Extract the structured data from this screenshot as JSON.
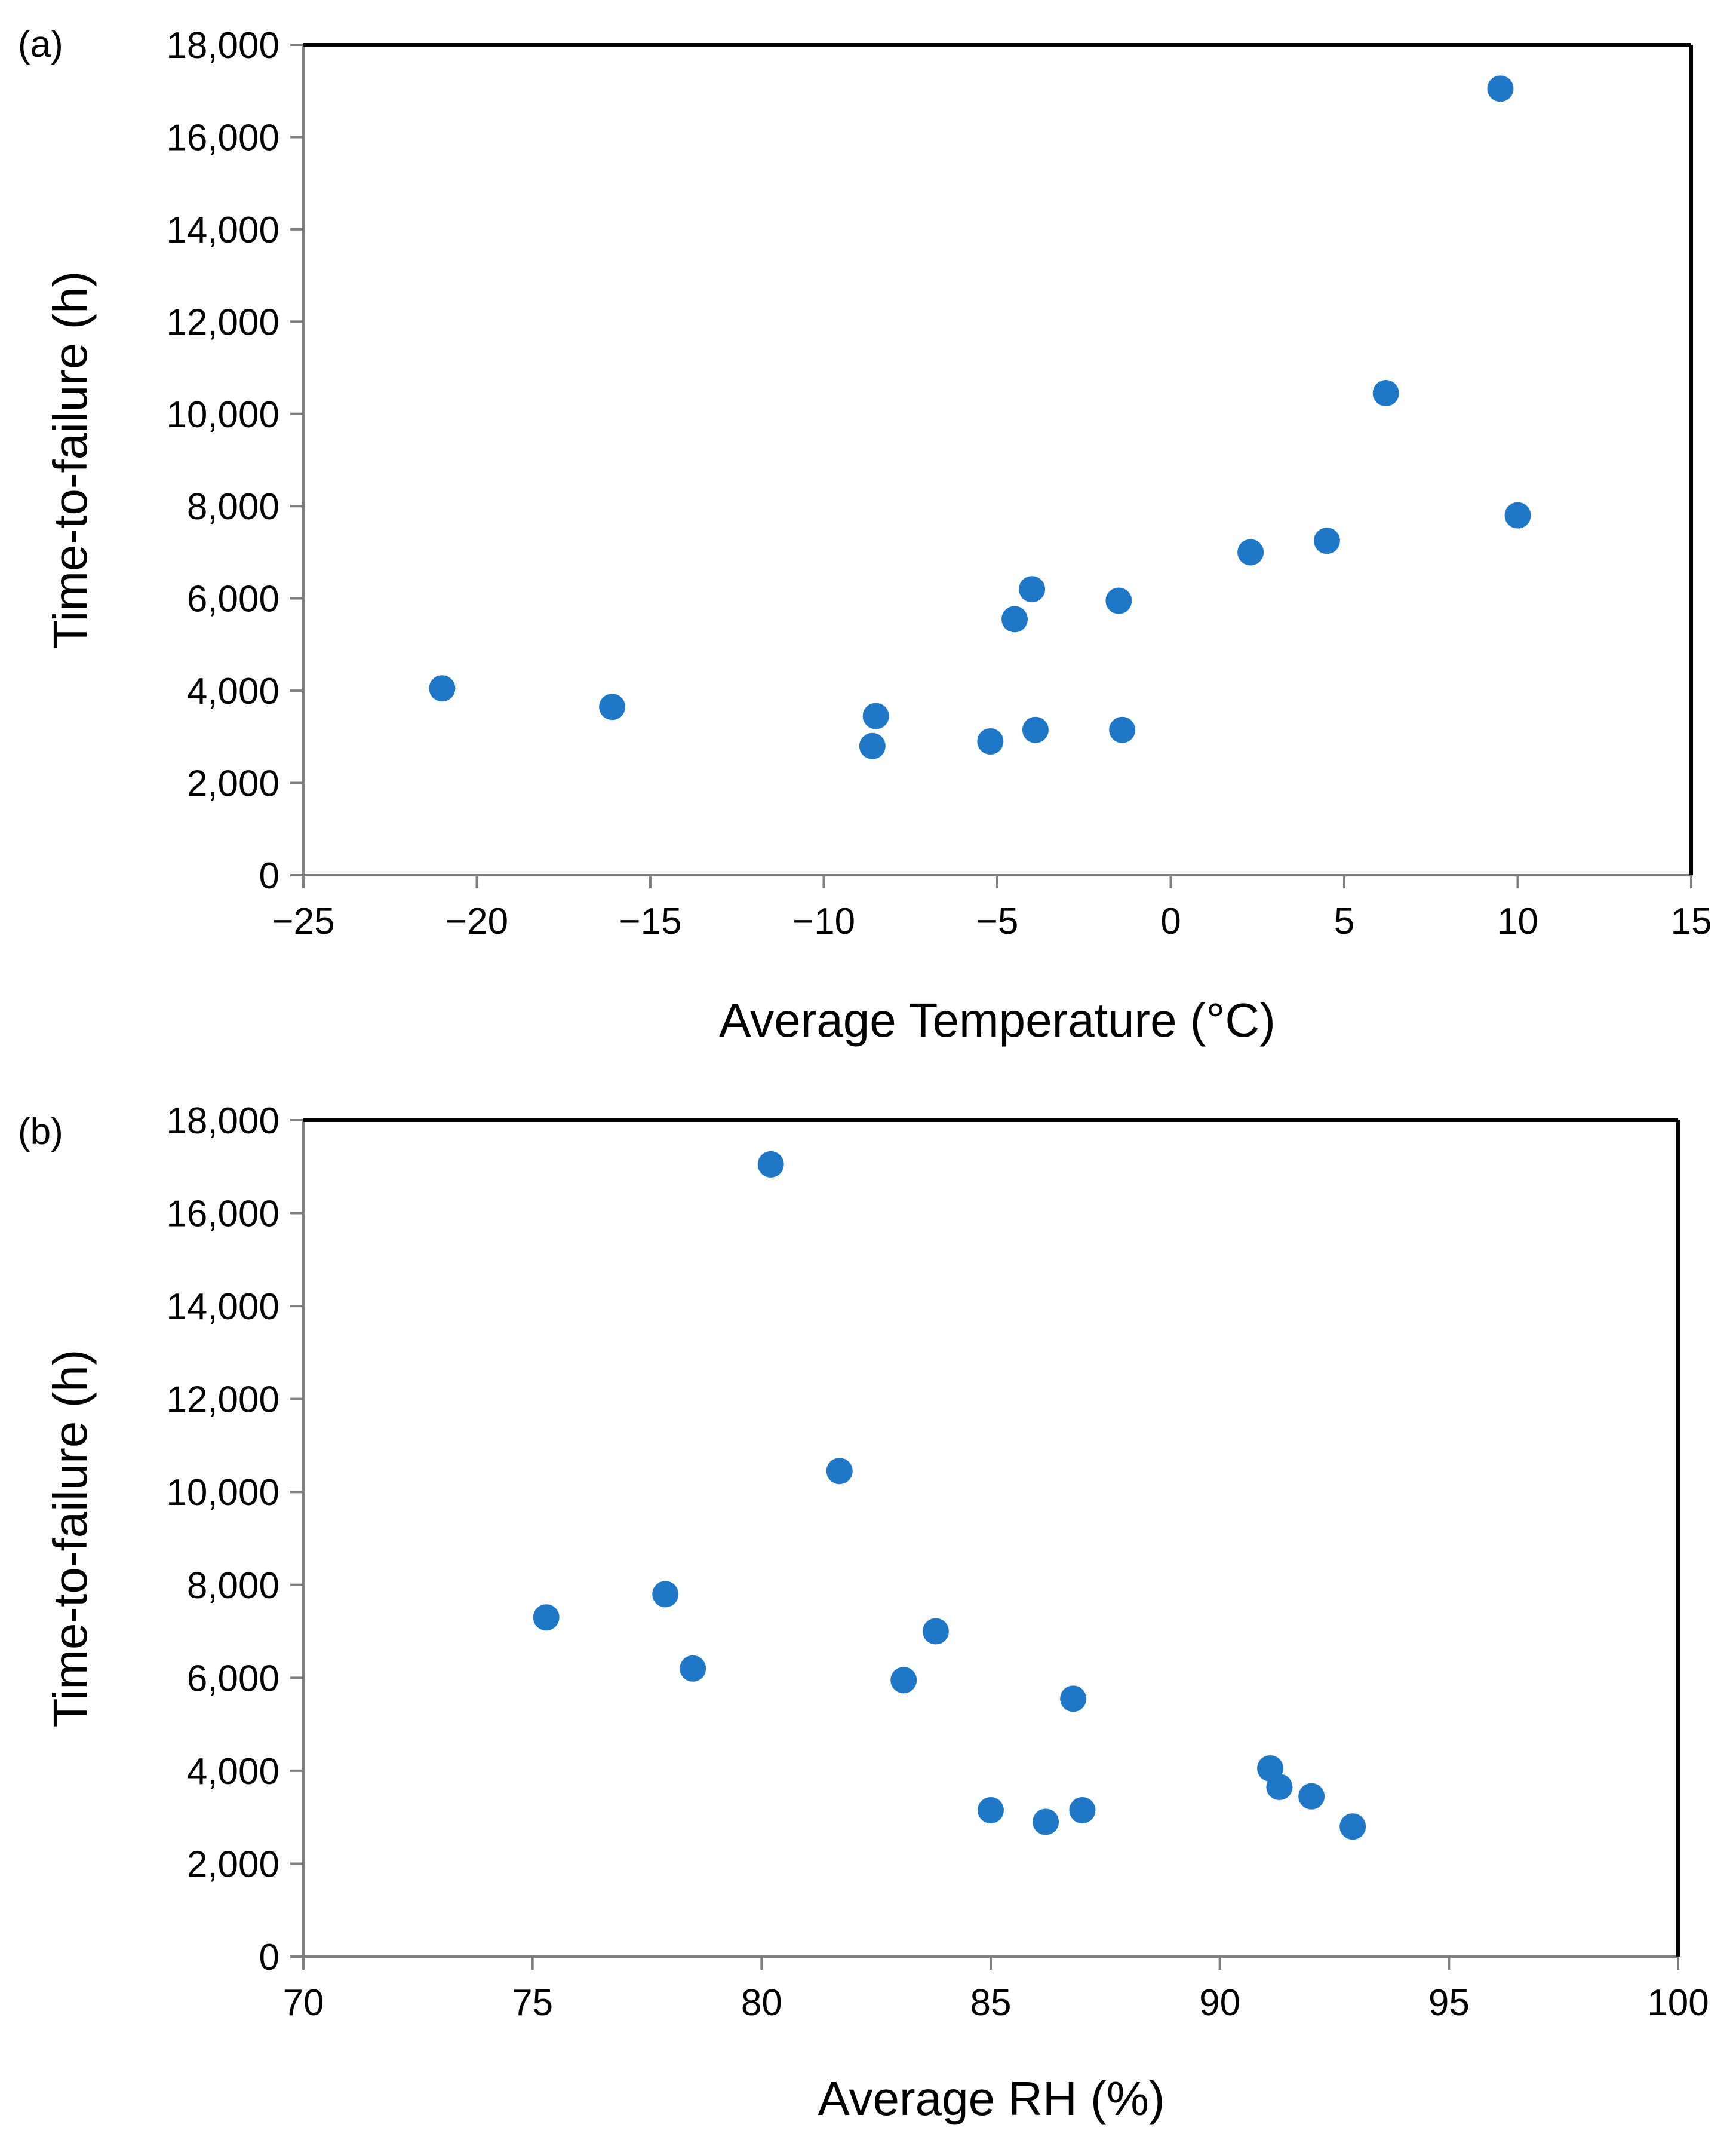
{
  "colors": {
    "marker": "#1F77C8",
    "axis": "#000000",
    "gridline": "#7f7f7f"
  },
  "chart_data": [
    {
      "type": "scatter",
      "panel_label": "(a)",
      "title": "",
      "xlabel": "Average Temperature (°C)",
      "ylabel": "Time-to-failure (h)",
      "xlim": [
        -25,
        15
      ],
      "ylim": [
        0,
        18000
      ],
      "xticks": [
        -25,
        -20,
        -15,
        -10,
        -5,
        0,
        5,
        10,
        15
      ],
      "xtick_labels": [
        "−25",
        "−20",
        "−15",
        "−10",
        "−5",
        "0",
        "5",
        "10",
        "15"
      ],
      "yticks": [
        0,
        2000,
        4000,
        6000,
        8000,
        10000,
        12000,
        14000,
        16000,
        18000
      ],
      "ytick_labels": [
        "0",
        "2,000",
        "4,000",
        "6,000",
        "8,000",
        "10,000",
        "12,000",
        "14,000",
        "16,000",
        "18,000"
      ],
      "grid": false,
      "series": [
        {
          "name": "Time-to-failure",
          "x": [
            -21.0,
            -16.1,
            -8.5,
            -8.6,
            -5.2,
            -4.5,
            -4.0,
            -3.9,
            -1.5,
            -1.4,
            2.3,
            4.5,
            6.2,
            9.5,
            10.0
          ],
          "y": [
            4050,
            3650,
            3450,
            2800,
            2900,
            5550,
            6200,
            3150,
            5950,
            3150,
            7000,
            7250,
            10450,
            17050,
            7800
          ]
        }
      ]
    },
    {
      "type": "scatter",
      "panel_label": "(b)",
      "title": "",
      "xlabel": "Average RH (%)",
      "ylabel": "Time-to-failure (h)",
      "xlim": [
        70,
        100
      ],
      "ylim": [
        0,
        18000
      ],
      "xticks": [
        70,
        75,
        80,
        85,
        90,
        95,
        100
      ],
      "xtick_labels": [
        "70",
        "75",
        "80",
        "85",
        "90",
        "95",
        "100"
      ],
      "yticks": [
        0,
        2000,
        4000,
        6000,
        8000,
        10000,
        12000,
        14000,
        16000,
        18000
      ],
      "ytick_labels": [
        "0",
        "2,000",
        "4,000",
        "6,000",
        "8,000",
        "10,000",
        "12,000",
        "14,000",
        "16,000",
        "18,000"
      ],
      "grid": false,
      "series": [
        {
          "name": "Time-to-failure",
          "x": [
            75.3,
            77.9,
            78.5,
            80.2,
            81.7,
            83.1,
            83.8,
            85.0,
            86.2,
            86.8,
            87.0,
            91.1,
            91.3,
            92.0,
            92.9
          ],
          "y": [
            7300,
            7800,
            6200,
            17050,
            10450,
            5950,
            7000,
            3150,
            2900,
            5550,
            3150,
            4050,
            3650,
            3450,
            2800
          ]
        }
      ]
    }
  ]
}
